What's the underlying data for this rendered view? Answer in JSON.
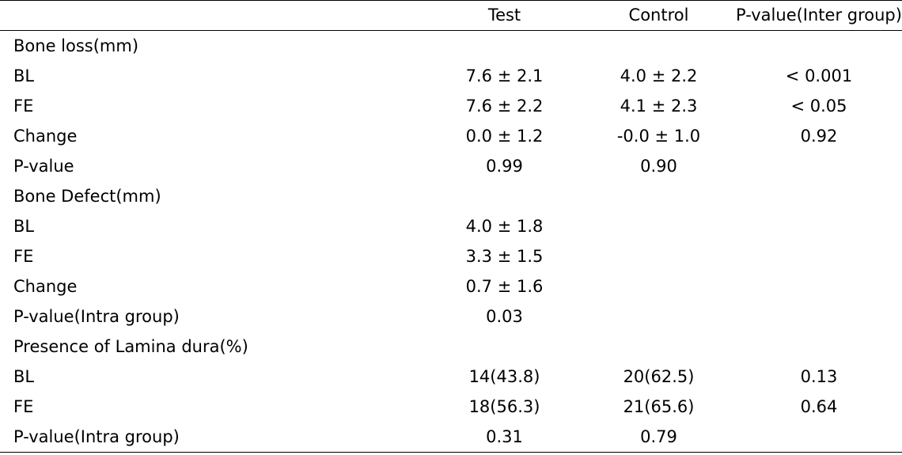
{
  "table": {
    "headers": [
      "",
      "Test",
      "Control",
      "P-value(Inter group)"
    ],
    "rows": [
      [
        "Bone loss(mm)",
        "",
        "",
        ""
      ],
      [
        "BL",
        "7.6 ± 2.1",
        "4.0 ± 2.2",
        "< 0.001"
      ],
      [
        "FE",
        "7.6 ± 2.2",
        "4.1 ± 2.3",
        "< 0.05"
      ],
      [
        "Change",
        "0.0 ± 1.2",
        "-0.0 ± 1.0",
        "0.92"
      ],
      [
        "P-value",
        "0.99",
        "0.90",
        ""
      ],
      [
        "Bone Defect(mm)",
        "",
        "",
        ""
      ],
      [
        "BL",
        "4.0 ± 1.8",
        "",
        ""
      ],
      [
        "FE",
        "3.3 ± 1.5",
        "",
        ""
      ],
      [
        "Change",
        "0.7 ± 1.6",
        "",
        ""
      ],
      [
        "P-value(Intra group)",
        "0.03",
        "",
        ""
      ],
      [
        "Presence of Lamina dura(%)",
        "",
        "",
        ""
      ],
      [
        "BL",
        "14(43.8)",
        "20(62.5)",
        "0.13"
      ],
      [
        "FE",
        "18(56.3)",
        "21(65.6)",
        "0.64"
      ],
      [
        "P-value(Intra group)",
        "0.31",
        "0.79",
        ""
      ]
    ]
  }
}
